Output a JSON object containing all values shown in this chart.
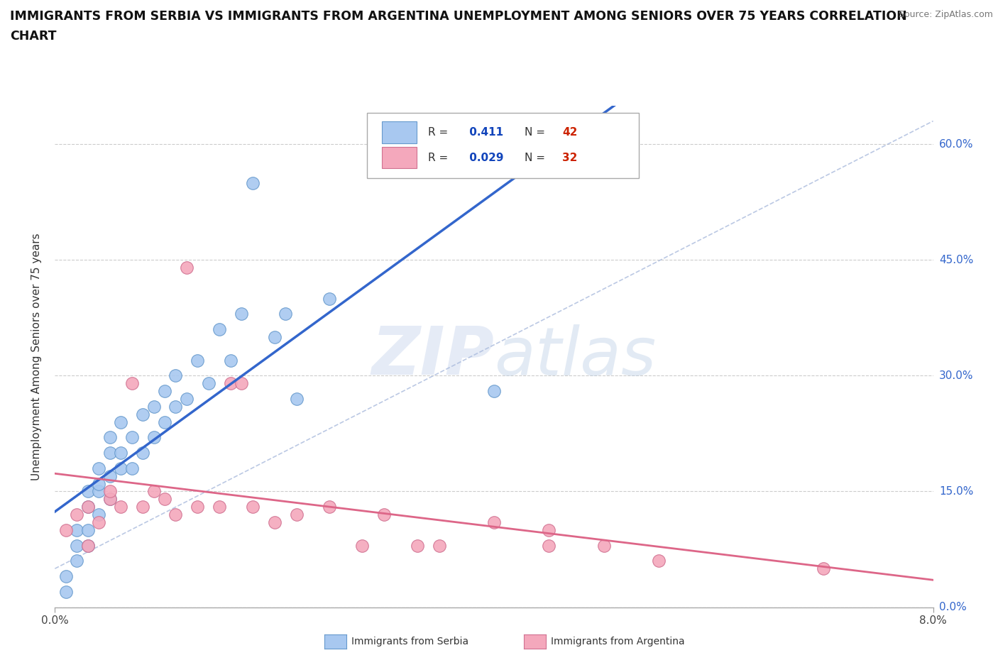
{
  "title_line1": "IMMIGRANTS FROM SERBIA VS IMMIGRANTS FROM ARGENTINA UNEMPLOYMENT AMONG SENIORS OVER 75 YEARS CORRELATION",
  "title_line2": "CHART",
  "source": "Source: ZipAtlas.com",
  "ylabel": "Unemployment Among Seniors over 75 years",
  "xlim": [
    0.0,
    0.08
  ],
  "ylim": [
    0.0,
    0.65
  ],
  "ytick_labels": [
    "0.0%",
    "15.0%",
    "30.0%",
    "45.0%",
    "60.0%"
  ],
  "ytick_vals": [
    0.0,
    0.15,
    0.3,
    0.45,
    0.6
  ],
  "xtick_labels": [
    "0.0%",
    "8.0%"
  ],
  "xtick_vals": [
    0.0,
    0.08
  ],
  "grid_color": "#cccccc",
  "serbia_color": "#a8c8f0",
  "serbia_edge": "#6699cc",
  "argentina_color": "#f4a8bc",
  "argentina_edge": "#d07090",
  "serbia_R": 0.411,
  "serbia_N": 42,
  "argentina_R": 0.029,
  "argentina_N": 32,
  "serbia_line_color": "#3366cc",
  "argentina_line_color": "#dd6688",
  "ref_line_color": "#aabbdd",
  "legend_R_color": "#1144bb",
  "legend_N_color": "#cc2200",
  "serbia_points_x": [
    0.001,
    0.001,
    0.002,
    0.002,
    0.002,
    0.003,
    0.003,
    0.003,
    0.003,
    0.004,
    0.004,
    0.004,
    0.004,
    0.005,
    0.005,
    0.005,
    0.005,
    0.006,
    0.006,
    0.006,
    0.007,
    0.007,
    0.008,
    0.008,
    0.009,
    0.009,
    0.01,
    0.01,
    0.011,
    0.011,
    0.012,
    0.013,
    0.014,
    0.015,
    0.016,
    0.017,
    0.018,
    0.02,
    0.021,
    0.022,
    0.025,
    0.04
  ],
  "serbia_points_y": [
    0.02,
    0.04,
    0.06,
    0.08,
    0.1,
    0.08,
    0.1,
    0.13,
    0.15,
    0.12,
    0.15,
    0.16,
    0.18,
    0.14,
    0.17,
    0.2,
    0.22,
    0.18,
    0.2,
    0.24,
    0.18,
    0.22,
    0.2,
    0.25,
    0.22,
    0.26,
    0.24,
    0.28,
    0.26,
    0.3,
    0.27,
    0.32,
    0.29,
    0.36,
    0.32,
    0.38,
    0.55,
    0.35,
    0.38,
    0.27,
    0.4,
    0.28
  ],
  "argentina_points_x": [
    0.001,
    0.002,
    0.003,
    0.003,
    0.004,
    0.005,
    0.005,
    0.006,
    0.007,
    0.008,
    0.009,
    0.01,
    0.011,
    0.012,
    0.013,
    0.015,
    0.016,
    0.017,
    0.018,
    0.02,
    0.022,
    0.025,
    0.028,
    0.03,
    0.033,
    0.035,
    0.04,
    0.045,
    0.045,
    0.05,
    0.055,
    0.07
  ],
  "argentina_points_y": [
    0.1,
    0.12,
    0.08,
    0.13,
    0.11,
    0.14,
    0.15,
    0.13,
    0.29,
    0.13,
    0.15,
    0.14,
    0.12,
    0.44,
    0.13,
    0.13,
    0.29,
    0.29,
    0.13,
    0.11,
    0.12,
    0.13,
    0.08,
    0.12,
    0.08,
    0.08,
    0.11,
    0.08,
    0.1,
    0.08,
    0.06,
    0.05
  ],
  "background_color": "#ffffff"
}
